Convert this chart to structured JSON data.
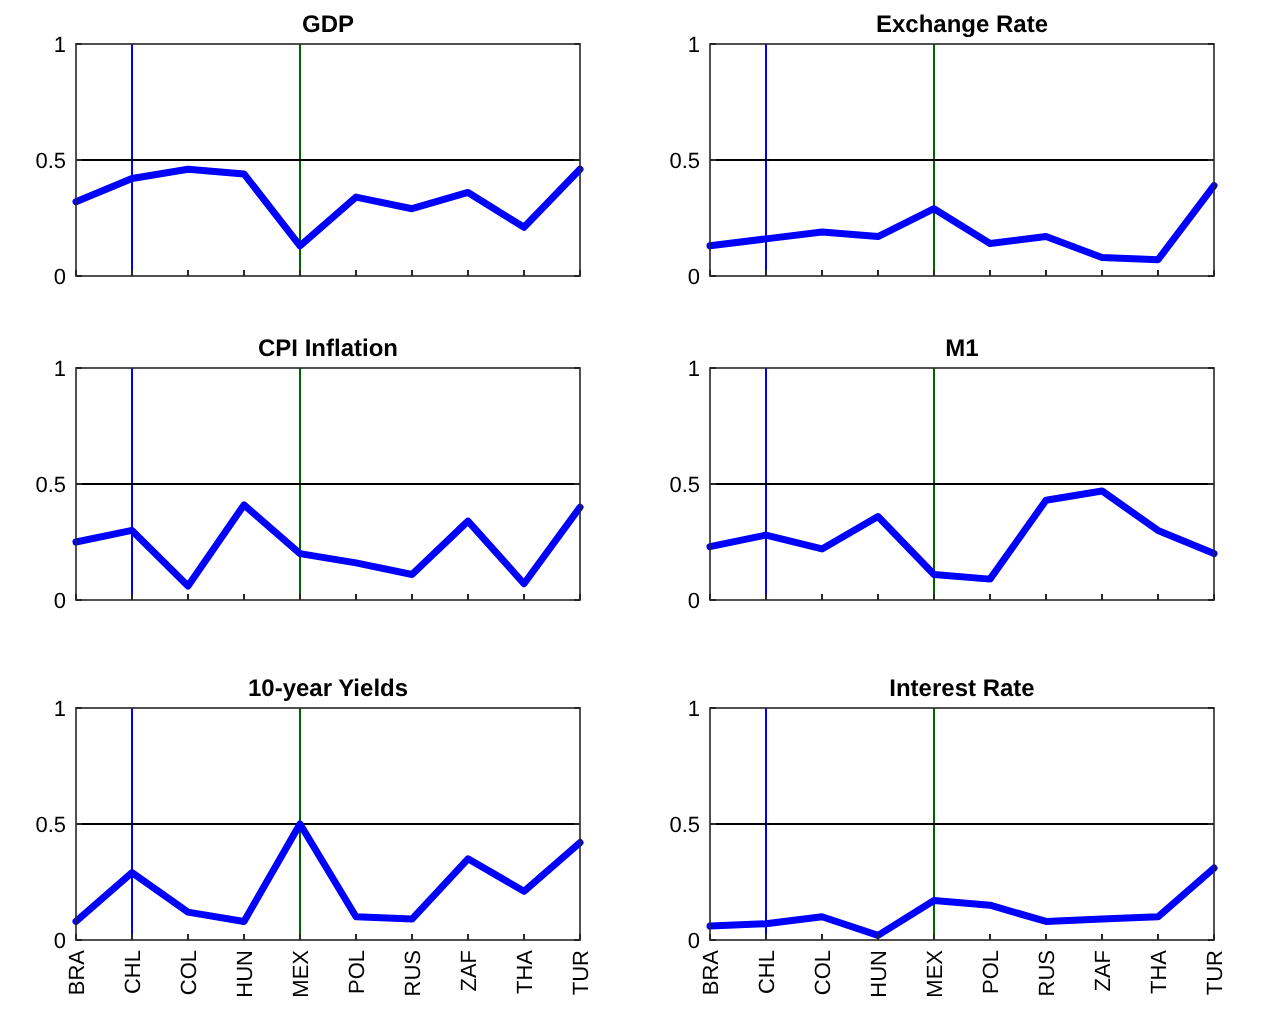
{
  "chart_data": [
    {
      "type": "line",
      "title": "GDP",
      "categories": [
        "BRA",
        "CHL",
        "COL",
        "HUN",
        "MEX",
        "POL",
        "RUS",
        "ZAF",
        "THA",
        "TUR"
      ],
      "series": [
        {
          "color": "#0000ff",
          "values": [
            0.32,
            0.42,
            0.46,
            0.44,
            0.13,
            0.34,
            0.29,
            0.36,
            0.21,
            0.46
          ]
        }
      ],
      "ylim": [
        0,
        1
      ],
      "yticks": [
        0,
        0.5,
        1
      ],
      "tick_labels": "y",
      "ref_lines": [
        {
          "axis": "x",
          "value": "CHL",
          "color": "#0000ff"
        },
        {
          "axis": "x",
          "value": "MEX",
          "color": "#006400"
        },
        {
          "axis": "y",
          "value": 0.5,
          "color": "#000000"
        }
      ]
    },
    {
      "type": "line",
      "title": "Exchange Rate",
      "categories": [
        "BRA",
        "CHL",
        "COL",
        "HUN",
        "MEX",
        "POL",
        "RUS",
        "ZAF",
        "THA",
        "TUR"
      ],
      "series": [
        {
          "color": "#0000ff",
          "values": [
            0.13,
            0.16,
            0.19,
            0.17,
            0.29,
            0.14,
            0.17,
            0.08,
            0.07,
            0.39
          ]
        }
      ],
      "ylim": [
        0,
        1
      ],
      "yticks": [
        0,
        0.5,
        1
      ],
      "tick_labels": "y",
      "ref_lines": [
        {
          "axis": "x",
          "value": "CHL",
          "color": "#0000ff"
        },
        {
          "axis": "x",
          "value": "MEX",
          "color": "#006400"
        },
        {
          "axis": "y",
          "value": 0.5,
          "color": "#000000"
        }
      ]
    },
    {
      "type": "line",
      "title": "CPI Inflation",
      "categories": [
        "BRA",
        "CHL",
        "COL",
        "HUN",
        "MEX",
        "POL",
        "RUS",
        "ZAF",
        "THA",
        "TUR"
      ],
      "series": [
        {
          "color": "#0000ff",
          "values": [
            0.25,
            0.3,
            0.06,
            0.41,
            0.2,
            0.16,
            0.11,
            0.34,
            0.07,
            0.4
          ]
        }
      ],
      "ylim": [
        0,
        1
      ],
      "yticks": [
        0,
        0.5,
        1
      ],
      "tick_labels": "y",
      "ref_lines": [
        {
          "axis": "x",
          "value": "CHL",
          "color": "#0000ff"
        },
        {
          "axis": "x",
          "value": "MEX",
          "color": "#006400"
        },
        {
          "axis": "y",
          "value": 0.5,
          "color": "#000000"
        }
      ]
    },
    {
      "type": "line",
      "title": "M1",
      "categories": [
        "BRA",
        "CHL",
        "COL",
        "HUN",
        "MEX",
        "POL",
        "RUS",
        "ZAF",
        "THA",
        "TUR"
      ],
      "series": [
        {
          "color": "#0000ff",
          "values": [
            0.23,
            0.28,
            0.22,
            0.36,
            0.11,
            0.09,
            0.43,
            0.47,
            0.3,
            0.2
          ]
        }
      ],
      "ylim": [
        0,
        1
      ],
      "yticks": [
        0,
        0.5,
        1
      ],
      "tick_labels": "y",
      "ref_lines": [
        {
          "axis": "x",
          "value": "CHL",
          "color": "#0000ff"
        },
        {
          "axis": "x",
          "value": "MEX",
          "color": "#006400"
        },
        {
          "axis": "y",
          "value": 0.5,
          "color": "#000000"
        }
      ]
    },
    {
      "type": "line",
      "title": "10-year Yields",
      "categories": [
        "BRA",
        "CHL",
        "COL",
        "HUN",
        "MEX",
        "POL",
        "RUS",
        "ZAF",
        "THA",
        "TUR"
      ],
      "series": [
        {
          "color": "#0000ff",
          "values": [
            0.08,
            0.29,
            0.12,
            0.08,
            0.5,
            0.1,
            0.09,
            0.35,
            0.21,
            0.42
          ]
        }
      ],
      "ylim": [
        0,
        1
      ],
      "yticks": [
        0,
        0.5,
        1
      ],
      "ref_lines": [
        {
          "axis": "x",
          "value": "CHL",
          "color": "#0000ff"
        },
        {
          "axis": "x",
          "value": "MEX",
          "color": "#006400"
        },
        {
          "axis": "y",
          "value": 0.5,
          "color": "#000000"
        }
      ]
    },
    {
      "type": "line",
      "title": "Interest Rate",
      "categories": [
        "BRA",
        "CHL",
        "COL",
        "HUN",
        "MEX",
        "POL",
        "RUS",
        "ZAF",
        "THA",
        "TUR"
      ],
      "series": [
        {
          "color": "#0000ff",
          "values": [
            0.06,
            0.07,
            0.1,
            0.02,
            0.17,
            0.15,
            0.08,
            0.09,
            0.1,
            0.31
          ]
        }
      ],
      "ylim": [
        0,
        1
      ],
      "yticks": [
        0,
        0.5,
        1
      ],
      "ref_lines": [
        {
          "axis": "x",
          "value": "CHL",
          "color": "#0000ff"
        },
        {
          "axis": "x",
          "value": "MEX",
          "color": "#006400"
        },
        {
          "axis": "y",
          "value": 0.5,
          "color": "#000000"
        }
      ]
    }
  ]
}
